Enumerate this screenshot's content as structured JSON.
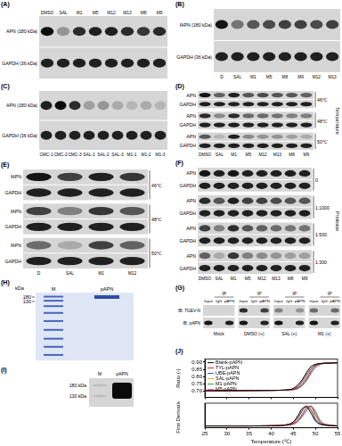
{
  "figure": {
    "panels": {
      "A": {
        "label": "(A)",
        "lanes": [
          "DMSO",
          "SAL",
          "M1",
          "M5",
          "M12",
          "M13",
          "M8",
          "M9"
        ],
        "groups": [
          {
            "rows": [
              {
                "name": "APN (180 kDa)",
                "bands": [
                  0.95,
                  0.3,
                  0.8,
                  0.85,
                  0.85,
                  0.8,
                  0.75,
                  0.8
                ]
              },
              {
                "name": "GAPDH (36 kDa)",
                "bands": [
                  0.85,
                  0.85,
                  0.85,
                  0.85,
                  0.85,
                  0.85,
                  0.85,
                  0.85
                ]
              }
            ]
          }
        ]
      },
      "B": {
        "label": "(B)",
        "lanes": [
          "D",
          "SAL",
          "M1",
          "M5",
          "M8",
          "M9",
          "M12",
          "M13"
        ],
        "groups": [
          {
            "rows": [
              {
                "name": "fAPN (180 kDa)",
                "bands": [
                  0.9,
                  0.45,
                  0.6,
                  0.65,
                  0.7,
                  0.7,
                  0.65,
                  0.7
                ]
              },
              {
                "name": "GAPDH (36 kDa)",
                "bands": [
                  0.85,
                  0.85,
                  0.85,
                  0.85,
                  0.85,
                  0.85,
                  0.85,
                  0.85
                ]
              }
            ]
          }
        ]
      },
      "C": {
        "label": "(C)",
        "lanes": [
          "CMC-1",
          "CMC-2",
          "CMC-3",
          "SAL-1",
          "SAL-2",
          "SAL-3",
          "M1-1",
          "M1-2",
          "M1-3"
        ],
        "groups": [
          {
            "rows": [
              {
                "name": "APN (180 kDa)",
                "bands": [
                  0.85,
                  0.95,
                  0.8,
                  0.25,
                  0.3,
                  0.2,
                  0.15,
                  0.2,
                  0.15
                ]
              },
              {
                "name": "GAPDH (36 kDa)",
                "bands": [
                  0.85,
                  0.85,
                  0.85,
                  0.85,
                  0.85,
                  0.85,
                  0.85,
                  0.85,
                  0.85
                ]
              }
            ]
          }
        ]
      },
      "D": {
        "label": "(D)",
        "side_label": "Temperature",
        "lanes": [
          "DMSO",
          "SAL",
          "M1",
          "M5",
          "M12",
          "M13",
          "M8",
          "M9"
        ],
        "groups": [
          {
            "name": "46℃",
            "rows": [
              {
                "name": "APN",
                "bands": [
                  0.9,
                  0.55,
                  0.85,
                  0.6,
                  0.65,
                  0.6,
                  0.6,
                  0.55
                ]
              },
              {
                "name": "GAPDH",
                "bands": [
                  0.85,
                  0.85,
                  0.85,
                  0.85,
                  0.85,
                  0.85,
                  0.85,
                  0.85
                ]
              }
            ]
          },
          {
            "name": "48℃",
            "rows": [
              {
                "name": "APN",
                "bands": [
                  0.8,
                  0.35,
                  0.8,
                  0.5,
                  0.5,
                  0.45,
                  0.4,
                  0.4
                ]
              },
              {
                "name": "GAPDH",
                "bands": [
                  0.85,
                  0.85,
                  0.85,
                  0.85,
                  0.85,
                  0.85,
                  0.85,
                  0.85
                ]
              }
            ]
          },
          {
            "name": "50℃",
            "rows": [
              {
                "name": "APN",
                "bands": [
                  0.6,
                  0.15,
                  0.85,
                  0.35,
                  0.3,
                  0.3,
                  0.25,
                  0.2
                ]
              },
              {
                "name": "GAPDH",
                "bands": [
                  0.85,
                  0.85,
                  0.85,
                  0.85,
                  0.85,
                  0.85,
                  0.85,
                  0.85
                ]
              }
            ]
          }
        ]
      },
      "E": {
        "label": "(E)",
        "lanes": [
          "D",
          "SAL",
          "M1",
          "M12"
        ],
        "groups": [
          {
            "name": "46℃",
            "rows": [
              {
                "name": "fAPN",
                "bands": [
                  0.9,
                  0.7,
                  0.85,
                  0.75
                ]
              },
              {
                "name": "GAPDH",
                "bands": [
                  0.85,
                  0.85,
                  0.85,
                  0.85
                ]
              }
            ]
          },
          {
            "name": "48℃",
            "rows": [
              {
                "name": "fAPN",
                "bands": [
                  0.7,
                  0.4,
                  0.75,
                  0.6
                ]
              },
              {
                "name": "GAPDH",
                "bands": [
                  0.85,
                  0.85,
                  0.85,
                  0.85
                ]
              }
            ]
          },
          {
            "name": "50℃",
            "rows": [
              {
                "name": "fAPN",
                "bands": [
                  0.5,
                  0.2,
                  0.7,
                  0.55
                ]
              },
              {
                "name": "GAPDH",
                "bands": [
                  0.85,
                  0.85,
                  0.85,
                  0.85
                ]
              }
            ]
          }
        ]
      },
      "F": {
        "label": "(F)",
        "side_label": "Protease",
        "lanes": [
          "DMSO",
          "SAL",
          "M1",
          "M5",
          "M12",
          "M13",
          "M8",
          "M9"
        ],
        "groups": [
          {
            "name": "0",
            "rows": [
              {
                "name": "APN",
                "bands": [
                  0.9,
                  0.85,
                  0.9,
                  0.85,
                  0.85,
                  0.85,
                  0.85,
                  0.85
                ]
              },
              {
                "name": "GAPDH",
                "bands": [
                  0.85,
                  0.85,
                  0.85,
                  0.85,
                  0.85,
                  0.85,
                  0.85,
                  0.85
                ]
              }
            ]
          },
          {
            "name": "1:1000",
            "rows": [
              {
                "name": "APN",
                "bands": [
                  0.8,
                  0.6,
                  0.85,
                  0.7,
                  0.7,
                  0.65,
                  0.6,
                  0.6
                ]
              },
              {
                "name": "GAPDH",
                "bands": [
                  0.85,
                  0.85,
                  0.85,
                  0.85,
                  0.85,
                  0.85,
                  0.85,
                  0.85
                ]
              }
            ]
          },
          {
            "name": "1:500",
            "rows": [
              {
                "name": "APN",
                "bands": [
                  0.7,
                  0.4,
                  0.8,
                  0.6,
                  0.55,
                  0.5,
                  0.45,
                  0.45
                ]
              },
              {
                "name": "GAPDH",
                "bands": [
                  0.85,
                  0.85,
                  0.85,
                  0.85,
                  0.85,
                  0.85,
                  0.85,
                  0.85
                ]
              }
            ]
          },
          {
            "name": "1:300",
            "rows": [
              {
                "name": "APN",
                "bands": [
                  0.55,
                  0.2,
                  0.75,
                  0.4,
                  0.35,
                  0.3,
                  0.25,
                  0.25
                ]
              },
              {
                "name": "GAPDH",
                "bands": [
                  0.85,
                  0.85,
                  0.85,
                  0.85,
                  0.85,
                  0.85,
                  0.85,
                  0.85
                ]
              }
            ]
          }
        ]
      },
      "G": {
        "label": "(G)",
        "header": "IP",
        "lanes": [
          "Input",
          "IgG",
          "pAPN"
        ],
        "row_names": [
          "IB: TGEV-N",
          "IB: pAPN"
        ],
        "groups": [
          {
            "name": "Mock",
            "bands": [
              [
                0,
                0,
                0
              ],
              [
                0.9,
                0,
                0.85
              ]
            ]
          },
          {
            "name": "DMSO (+)",
            "bands": [
              [
                0.8,
                0,
                0.7
              ],
              [
                0.9,
                0,
                0.85
              ]
            ]
          },
          {
            "name": "SAL (+)",
            "bands": [
              [
                0.4,
                0,
                0.3
              ],
              [
                0.9,
                0,
                0.85
              ]
            ]
          },
          {
            "name": "M1 (+)",
            "bands": [
              [
                0.5,
                0,
                0.5
              ],
              [
                0.9,
                0,
                0.85
              ]
            ]
          }
        ]
      },
      "H": {
        "label": "(H)",
        "unit": "kDa",
        "markers": [
          180,
          130
        ],
        "lanes": [
          {
            "name": "M"
          },
          {
            "name": "pAPN",
            "band": 0.9
          }
        ]
      },
      "I": {
        "label": "(I)",
        "markers": [
          "180 kDa",
          "130 kDa"
        ],
        "lanes": [
          {
            "name": "M",
            "band": 0.1
          },
          {
            "name": "pAPN",
            "band": 0.95
          }
        ]
      },
      "J": {
        "label": "(J)"
      }
    }
  },
  "chart_data": [
    {
      "type": "line",
      "y_label": "Ratio (-)",
      "legend": "upper left",
      "tick_labels": "y",
      "grid": false,
      "x": [
        25,
        30,
        35,
        40,
        42,
        44,
        45,
        46,
        47,
        48,
        49,
        50,
        51,
        52,
        55
      ],
      "xlim": [
        25,
        55
      ],
      "xticks": [
        25,
        30,
        35,
        40,
        45,
        50,
        55
      ],
      "ylim": [
        0.66,
        0.92
      ],
      "yticks": [
        {
          "value": 0.7,
          "label": "0.70"
        },
        {
          "value": 0.75,
          "label": "0.75"
        },
        {
          "value": 0.8,
          "label": "0.80"
        },
        {
          "value": 0.85,
          "label": "0.85"
        },
        {
          "value": 0.9,
          "label": "0.90"
        }
      ],
      "series": [
        {
          "name": "Blank-pAPN",
          "color": "#000000",
          "values": [
            0.705,
            0.705,
            0.706,
            0.707,
            0.708,
            0.712,
            0.72,
            0.745,
            0.78,
            0.83,
            0.87,
            0.885,
            0.89,
            0.892,
            0.895
          ]
        },
        {
          "name": "TYL-pAPN",
          "color": "#e41a1c",
          "values": [
            0.705,
            0.705,
            0.706,
            0.707,
            0.708,
            0.71,
            0.714,
            0.725,
            0.75,
            0.79,
            0.84,
            0.875,
            0.888,
            0.892,
            0.895
          ]
        },
        {
          "name": "UBE-pAPN",
          "color": "#1f4fbf",
          "values": [
            0.705,
            0.705,
            0.706,
            0.707,
            0.708,
            0.711,
            0.716,
            0.732,
            0.765,
            0.81,
            0.855,
            0.88,
            0.889,
            0.892,
            0.895
          ]
        },
        {
          "name": "SAL-pAPN",
          "color": "#e6a817",
          "values": [
            0.705,
            0.705,
            0.706,
            0.707,
            0.708,
            0.711,
            0.718,
            0.738,
            0.772,
            0.82,
            0.862,
            0.882,
            0.89,
            0.892,
            0.895
          ]
        },
        {
          "name": "M1-pAPN",
          "color": "#2ca02c",
          "values": [
            0.705,
            0.705,
            0.706,
            0.707,
            0.708,
            0.709,
            0.712,
            0.72,
            0.742,
            0.78,
            0.83,
            0.868,
            0.885,
            0.891,
            0.895
          ]
        },
        {
          "name": "M5-pAPN",
          "color": "#d45fd1",
          "values": [
            0.705,
            0.705,
            0.706,
            0.707,
            0.708,
            0.709,
            0.711,
            0.718,
            0.738,
            0.772,
            0.82,
            0.862,
            0.882,
            0.89,
            0.895
          ]
        }
      ]
    },
    {
      "type": "line",
      "x_label": "Temperature (℃)",
      "y_label": "First Derivative",
      "tick_labels": "x",
      "grid": false,
      "x": [
        25,
        30,
        35,
        40,
        42,
        44,
        45,
        46,
        47,
        48,
        49,
        50,
        51,
        52,
        55
      ],
      "xlim": [
        25,
        55
      ],
      "xticks": [
        25,
        30,
        35,
        40,
        45,
        50,
        55
      ],
      "ylim": [
        -0.004,
        0.05
      ],
      "series": [
        {
          "name": "Blank-pAPN",
          "color": "#000000",
          "values": [
            0,
            0,
            0,
            0.0005,
            0.001,
            0.004,
            0.009,
            0.022,
            0.038,
            0.042,
            0.028,
            0.011,
            0.004,
            0.002,
            0
          ]
        },
        {
          "name": "TYL-pAPN",
          "color": "#e41a1c",
          "values": [
            0,
            0,
            0,
            0.0005,
            0.001,
            0.002,
            0.005,
            0.012,
            0.026,
            0.04,
            0.043,
            0.024,
            0.009,
            0.003,
            0
          ]
        },
        {
          "name": "UBE-pAPN",
          "color": "#1f4fbf",
          "values": [
            0,
            0,
            0,
            0.0005,
            0.001,
            0.003,
            0.007,
            0.017,
            0.033,
            0.044,
            0.036,
            0.016,
            0.006,
            0.002,
            0
          ]
        },
        {
          "name": "SAL-pAPN",
          "color": "#e6a817",
          "values": [
            0,
            0,
            0,
            0.0005,
            0.001,
            0.003,
            0.008,
            0.019,
            0.035,
            0.044,
            0.033,
            0.014,
            0.005,
            0.002,
            0
          ]
        },
        {
          "name": "M1-pAPN",
          "color": "#2ca02c",
          "values": [
            0,
            0,
            0,
            0.0005,
            0.001,
            0.002,
            0.004,
            0.01,
            0.022,
            0.036,
            0.044,
            0.03,
            0.012,
            0.004,
            0
          ]
        },
        {
          "name": "M5-pAPN",
          "color": "#d45fd1",
          "values": [
            0,
            0,
            0,
            0.0005,
            0.001,
            0.002,
            0.004,
            0.009,
            0.02,
            0.033,
            0.043,
            0.033,
            0.014,
            0.005,
            0
          ]
        }
      ]
    }
  ]
}
